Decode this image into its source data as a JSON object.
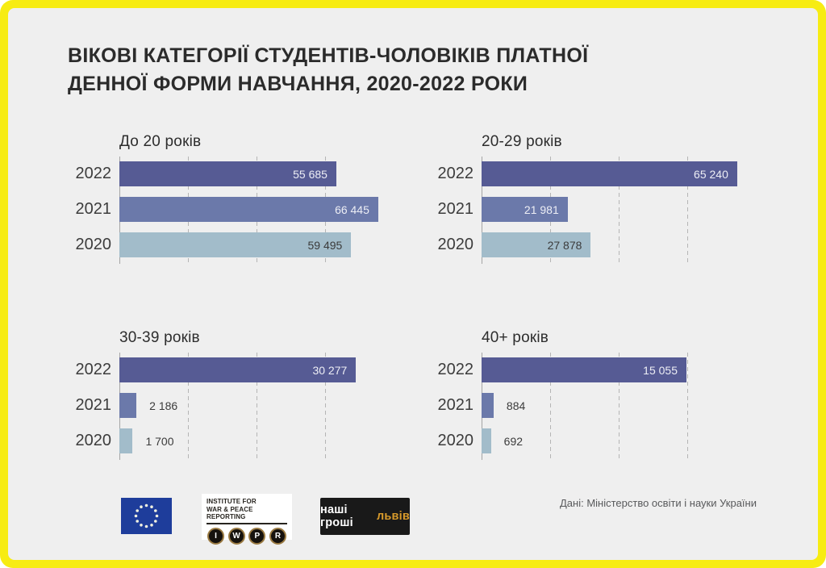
{
  "title": {
    "line1": "ВІКОВІ КАТЕГОРІЇ СТУДЕНТІВ-ЧОЛОВІКІВ ПЛАТНОЇ",
    "line2": "ДЕННОЇ ФОРМИ НАВЧАННЯ, 2020-2022 РОКИ"
  },
  "source_note": "Дані: Міністерство освіти і науки України",
  "colors": {
    "frame_border": "#f7ec13",
    "background": "#efefef",
    "bar_2022": "#565b94",
    "bar_2021": "#6b79aa",
    "bar_2020": "#a2bcca",
    "value_label_light": "#edeef5",
    "value_label_dark": "#3b3b3b",
    "gridline": "#b5b5b5",
    "axis": "#a5a5a5",
    "eu_flag_blue": "#1e3d9b",
    "eu_flag_stars": "#f1f1e0",
    "nashi_gold": "#d99b2b"
  },
  "chart_data": [
    {
      "type": "bar",
      "orientation": "horizontal",
      "title": "До 20 років",
      "categories": [
        "2022",
        "2021",
        "2020"
      ],
      "values": [
        55685,
        66445,
        59495
      ],
      "labels": [
        "55 685",
        "66 445",
        "59 495"
      ],
      "xmax": 70400,
      "gridlines_pct": [
        25,
        50,
        75
      ],
      "x_tick_labels_visible": false,
      "legend": "none"
    },
    {
      "type": "bar",
      "orientation": "horizontal",
      "title": "20-29 років",
      "categories": [
        "2022",
        "2021",
        "2020"
      ],
      "values": [
        65240,
        21981,
        27878
      ],
      "labels": [
        "65 240",
        "21 981",
        "27 878"
      ],
      "xmax": 70000,
      "gridlines_pct": [
        25,
        50,
        75
      ],
      "x_tick_labels_visible": false,
      "legend": "none"
    },
    {
      "type": "bar",
      "orientation": "horizontal",
      "title": "30-39 років",
      "categories": [
        "2022",
        "2021",
        "2020"
      ],
      "values": [
        30277,
        2186,
        1700
      ],
      "labels": [
        "30 277",
        "2 186",
        "1 700"
      ],
      "xmax": 35100,
      "gridlines_pct": [
        25,
        50,
        75
      ],
      "x_tick_labels_visible": false,
      "legend": "none"
    },
    {
      "type": "bar",
      "orientation": "horizontal",
      "title": "40+ років",
      "categories": [
        "2022",
        "2021",
        "2020"
      ],
      "values": [
        15055,
        884,
        692
      ],
      "labels": [
        "15 055",
        "884",
        "692"
      ],
      "xmax": 20150,
      "gridlines_pct": [
        25,
        50,
        75
      ],
      "x_tick_labels_visible": false,
      "legend": "none"
    }
  ],
  "footer": {
    "iwpr": {
      "line1": "INSTITUTE FOR",
      "line2": "WAR & PEACE REPORTING",
      "keys": [
        "I",
        "W",
        "P",
        "R"
      ]
    },
    "nashi_groshi": {
      "white": "наші гроші",
      "gold": "львів"
    }
  }
}
